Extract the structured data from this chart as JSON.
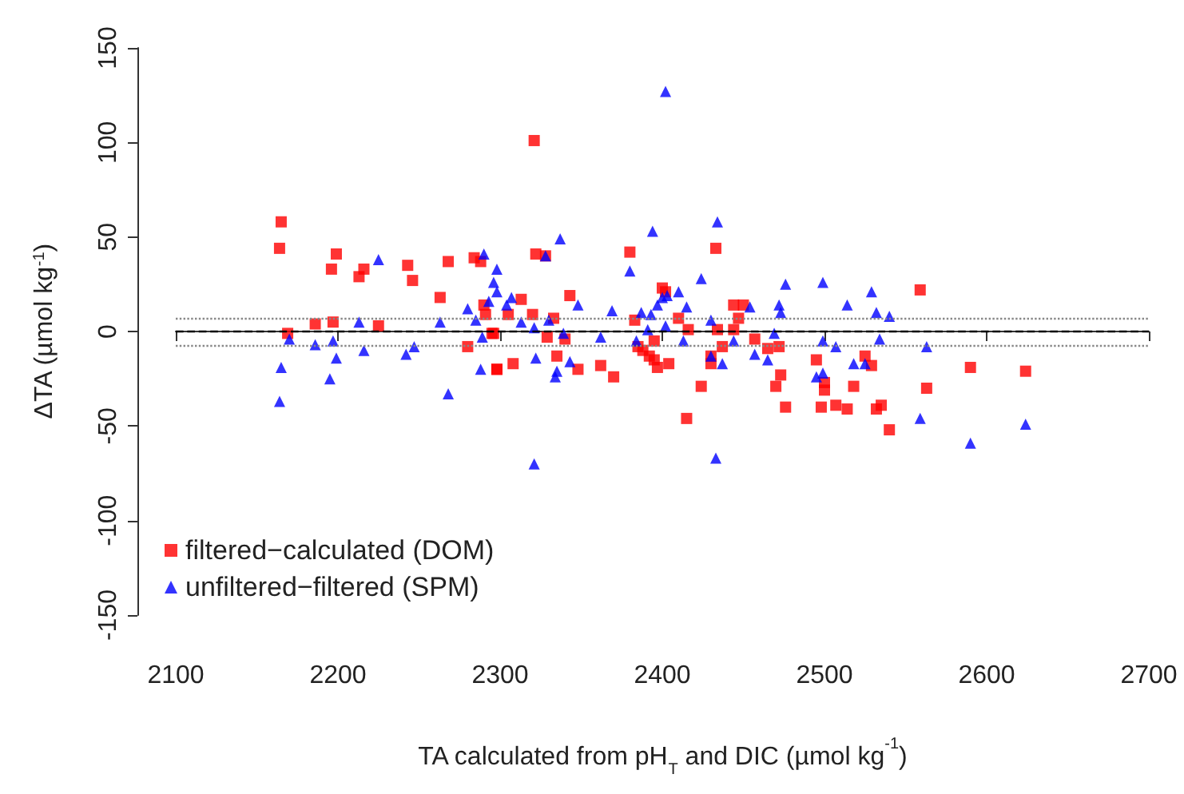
{
  "chart_data": {
    "type": "scatter",
    "xlabel": "TA calculated from pH$_{T}$ and DIC (µmol kg$^{-1}$)",
    "ylabel": "ΔTA (µmol kg$^{-1}$)",
    "xlim": [
      2100,
      2700
    ],
    "xticks": [
      2100,
      2200,
      2300,
      2400,
      2500,
      2600,
      2700
    ],
    "ylim": [
      -150,
      150
    ],
    "yticks": [
      -150,
      -100,
      -50,
      0,
      50,
      100,
      150
    ],
    "grid": false,
    "legend": "bottom left",
    "ref_lines": [
      {
        "axis": "y",
        "value": 0,
        "color": "#000000",
        "line_style": "dashed"
      },
      {
        "axis": "y",
        "value": 7,
        "color": "#888888",
        "line_style": "dotted"
      },
      {
        "axis": "y",
        "value": -7,
        "color": "#888888",
        "line_style": "dotted"
      }
    ],
    "series": [
      {
        "name": "filtered−calculated (DOM)",
        "color": "#ff0000",
        "marker": "square",
        "x": [
          2165,
          2164,
          2199,
          2196,
          2216,
          2213,
          2243,
          2246,
          2268,
          2284,
          2288,
          2263,
          2186,
          2197,
          2225,
          2169,
          2280,
          2298,
          2290,
          2291,
          2296,
          2321,
          2322,
          2328,
          2380,
          2433,
          2400,
          2402,
          2343,
          2313,
          2320,
          2305,
          2333,
          2383,
          2410,
          2444,
          2450,
          2447,
          2416,
          2434,
          2444,
          2295,
          2329,
          2340,
          2395,
          2437,
          2457,
          2385,
          2388,
          2392,
          2395,
          2397,
          2404,
          2430,
          2430,
          2335,
          2348,
          2362,
          2370,
          2298,
          2308,
          2424,
          2415,
          2559,
          2465,
          2472,
          2495,
          2525,
          2529,
          2473,
          2470,
          2500,
          2500,
          2518,
          2563,
          2590,
          2624,
          2476,
          2498,
          2507,
          2514,
          2532,
          2535,
          2540
        ],
        "values": [
          58,
          44,
          41,
          33,
          33,
          29,
          35,
          27,
          37,
          39,
          37,
          18,
          4,
          5,
          3,
          -1,
          -8,
          -20,
          14,
          9,
          -1,
          101,
          41,
          40,
          42,
          44,
          23,
          21,
          19,
          17,
          9,
          9,
          7,
          6,
          7,
          14,
          14,
          7,
          1,
          1,
          1,
          -1,
          -3,
          -4,
          -5,
          -8,
          -4,
          -8,
          -10,
          -13,
          -15,
          -19,
          -17,
          -13,
          -17,
          -13,
          -20,
          -18,
          -24,
          -20,
          -17,
          -29,
          -46,
          22,
          -9,
          -8,
          -15,
          -13,
          -18,
          -23,
          -29,
          -27,
          -31,
          -29,
          -30,
          -19,
          -21,
          -40,
          -40,
          -39,
          -41,
          -41,
          -39,
          -52
        ]
      },
      {
        "name": "unfiltered−filtered (SPM)",
        "color": "#0000ff",
        "marker": "triangle",
        "x": [
          2225,
          2290,
          2298,
          2296,
          2298,
          2293,
          2280,
          2285,
          2213,
          2263,
          2170,
          2186,
          2197,
          2216,
          2247,
          2242,
          2199,
          2289,
          2288,
          2165,
          2164,
          2195,
          2268,
          2304,
          2402,
          2434,
          2394,
          2337,
          2328,
          2380,
          2424,
          2348,
          2369,
          2387,
          2393,
          2397,
          2400,
          2403,
          2410,
          2415,
          2307,
          2313,
          2321,
          2330,
          2339,
          2362,
          2384,
          2391,
          2402,
          2413,
          2430,
          2444,
          2430,
          2437,
          2457,
          2322,
          2335,
          2334,
          2343,
          2321,
          2433,
          2476,
          2499,
          2472,
          2473,
          2454,
          2514,
          2529,
          2532,
          2540,
          2469,
          2499,
          2507,
          2534,
          2563,
          2465,
          2495,
          2499,
          2518,
          2525,
          2559,
          2590,
          2624
        ],
        "values": [
          38,
          41,
          33,
          26,
          21,
          16,
          12,
          6,
          5,
          5,
          -4,
          -7,
          -5,
          -10,
          -8,
          -12,
          -14,
          -3,
          -20,
          -19,
          -37,
          -25,
          -33,
          14,
          127,
          58,
          53,
          49,
          40,
          32,
          28,
          14,
          11,
          10,
          9,
          14,
          18,
          19,
          21,
          13,
          18,
          5,
          2,
          6,
          -1,
          -3,
          -5,
          1,
          3,
          -5,
          6,
          -5,
          -13,
          -17,
          -12,
          -14,
          -21,
          -24,
          -16,
          -70,
          -67,
          25,
          26,
          14,
          10,
          13,
          14,
          21,
          10,
          8,
          -1,
          -5,
          -8,
          -4,
          -8,
          -15,
          -24,
          -22,
          -17,
          -17,
          -46,
          -59,
          -49
        ]
      }
    ]
  }
}
